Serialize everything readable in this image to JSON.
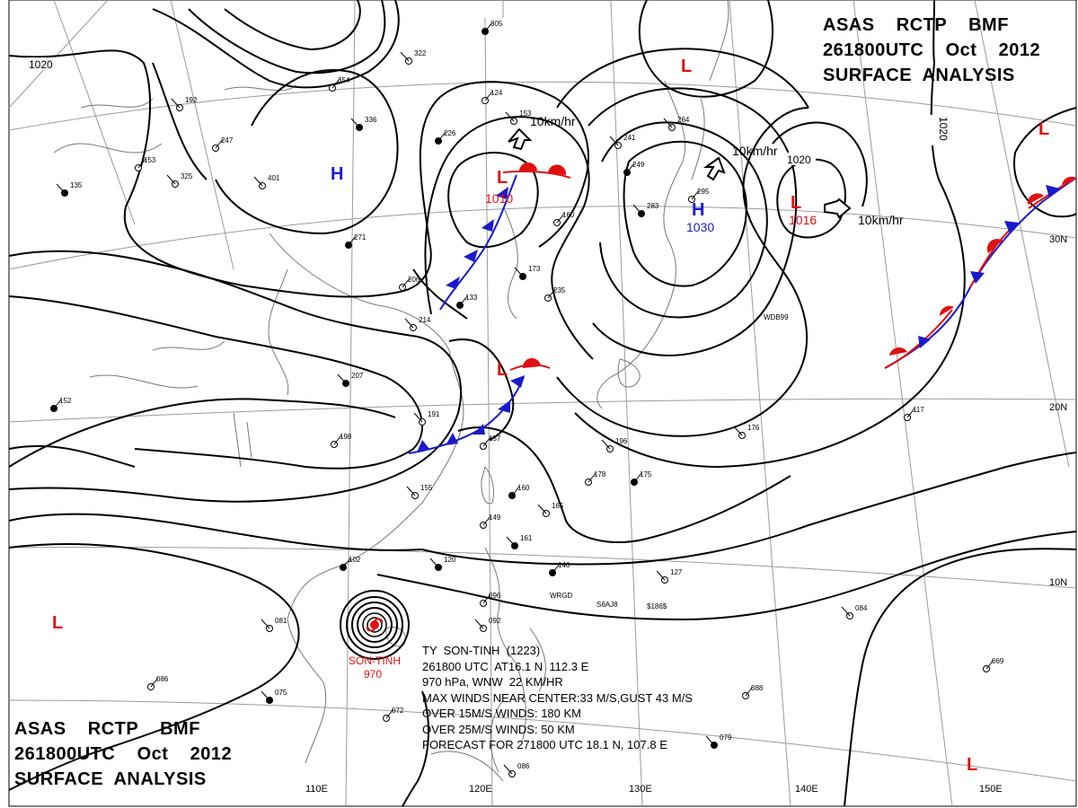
{
  "header": {
    "line1": "ASAS    RCTP    BMF",
    "line2": "261800UTC    Oct    2012",
    "line3": "SURFACE  ANALYSIS"
  },
  "typhoon": {
    "name_label": "SON-TINH",
    "pressure_label": "970",
    "info_lines": [
      "TY  SON-TINH  (1223)",
      "261800 UTC  AT16.1 N  112.3 E",
      "970 hPa, WNW  22 KM/HR",
      "MAX WINDS NEAR CENTER:33 M/S,GUST 43 M/S",
      "OVER 15M/S WINDS: 180 KM",
      "OVER 25M/S WINDS: 50 KM",
      "FORECAST FOR 271800 UTC 18.1 N, 107.8 E"
    ]
  },
  "pressure_centers": [
    {
      "type": "H",
      "value": "",
      "color": "#1a1acc"
    },
    {
      "type": "H",
      "value": "1030",
      "color": "#1a1acc"
    },
    {
      "type": "L",
      "value": "1010",
      "color": "#e01010"
    },
    {
      "type": "L",
      "value": "1016",
      "color": "#e01010"
    },
    {
      "type": "L",
      "value": "",
      "color": "#e01010"
    },
    {
      "type": "L",
      "value": "",
      "color": "#e01010"
    },
    {
      "type": "L",
      "value": "",
      "color": "#e01010"
    },
    {
      "type": "L",
      "value": "",
      "color": "#e01010"
    }
  ],
  "isobar_labels": [
    "1020",
    "1020",
    "1020"
  ],
  "motion_labels": [
    "10km/hr",
    "10km/hr",
    "10km/hr"
  ],
  "grid_labels": {
    "lon": [
      "110E",
      "120E",
      "130E",
      "140E",
      "150E"
    ],
    "lat": [
      "30N",
      "20N",
      "10N"
    ]
  },
  "stations": [
    "WRGD",
    "S6AJ8",
    "$186$",
    "WDB99"
  ],
  "station_values": [
    "305",
    "322",
    "354",
    "336",
    "247",
    "401",
    "226",
    "153",
    "160",
    "173",
    "235",
    "241",
    "249",
    "264",
    "295",
    "283",
    "206",
    "214",
    "133",
    "191",
    "157",
    "207",
    "198",
    "155",
    "160",
    "165",
    "149",
    "161",
    "178",
    "196",
    "175",
    "176",
    "117",
    "120",
    "096",
    "092",
    "102",
    "081",
    "086",
    "075",
    "072",
    "086",
    "146",
    "127",
    "088",
    "079",
    "069",
    "084",
    "271",
    "325",
    "153",
    "135",
    "124",
    "192",
    "152"
  ],
  "colors": {
    "isobar": "#000000",
    "high": "#1a1acc",
    "low": "#e01010",
    "front_blue": "#1a1acc",
    "front_red": "#e01010",
    "coast": "#777777",
    "grid": "#9a9a9a"
  }
}
